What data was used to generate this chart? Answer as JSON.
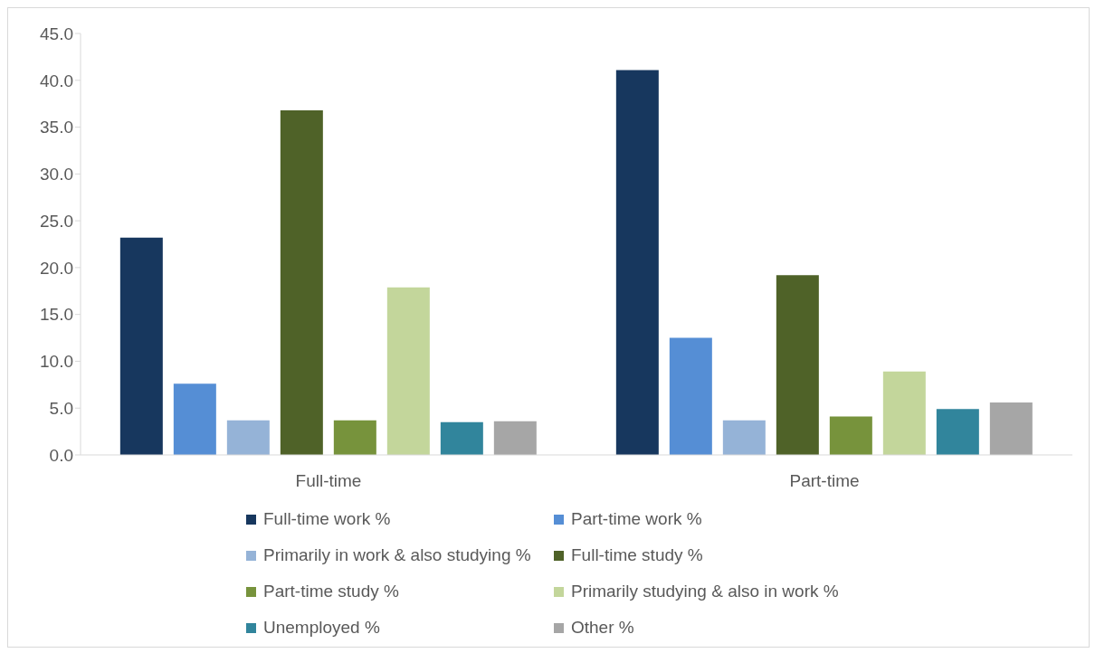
{
  "chart_data": {
    "type": "bar",
    "categories": [
      "Full-time",
      "Part-time"
    ],
    "series": [
      {
        "name": "Full-time work %",
        "color": "#17375e",
        "values": [
          23.2,
          41.1
        ]
      },
      {
        "name": "Part-time work %",
        "color": "#558ed5",
        "values": [
          7.6,
          12.5
        ]
      },
      {
        "name": "Primarily in work & also studying %",
        "color": "#95b3d7",
        "values": [
          3.7,
          3.7
        ]
      },
      {
        "name": "Full-time study %",
        "color": "#4f6228",
        "values": [
          36.8,
          19.2
        ]
      },
      {
        "name": "Part-time study %",
        "color": "#77933c",
        "values": [
          3.7,
          4.1
        ]
      },
      {
        "name": "Primarily studying & also in work %",
        "color": "#c3d69b",
        "values": [
          17.9,
          8.9
        ]
      },
      {
        "name": "Unemployed %",
        "color": "#31859c",
        "values": [
          3.5,
          4.9
        ]
      },
      {
        "name": "Other %",
        "color": "#a6a6a6",
        "values": [
          3.6,
          5.6
        ]
      }
    ],
    "ylim": [
      0,
      45
    ],
    "yticks": [
      {
        "value": 0,
        "label": "0.0"
      },
      {
        "value": 5,
        "label": "5.0"
      },
      {
        "value": 10,
        "label": "10.0"
      },
      {
        "value": 15,
        "label": "15.0"
      },
      {
        "value": 20,
        "label": "20.0"
      },
      {
        "value": 25,
        "label": "25.0"
      },
      {
        "value": 30,
        "label": "30.0"
      },
      {
        "value": 35,
        "label": "35.0"
      },
      {
        "value": 40,
        "label": "40.0"
      },
      {
        "value": 45,
        "label": "45.0"
      }
    ],
    "grid": false,
    "legend": "bottom"
  }
}
